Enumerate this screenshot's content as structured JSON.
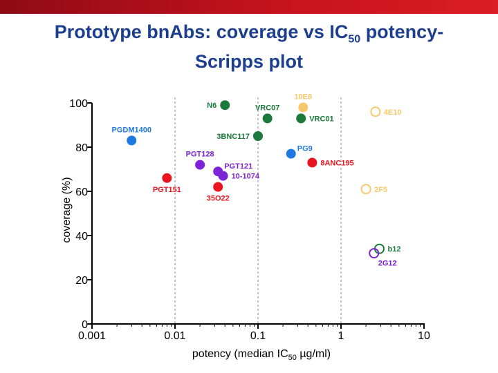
{
  "title": {
    "line1_a": "Prototype bnAbs: coverage vs IC",
    "line1_sub": "50",
    "line1_b": " potency-",
    "line2": "Scripps plot"
  },
  "colors": {
    "header_bar": "#c8141e",
    "title": "#1c3f8f",
    "green": "#1a7a3a",
    "blue": "#1f78e0",
    "purple": "#7e22d6",
    "red": "#e8141e",
    "yellow": "#f7c86a"
  },
  "chart_data": {
    "type": "scatter",
    "xscale": "log",
    "xlim": [
      0.001,
      10
    ],
    "ylim": [
      0,
      100
    ],
    "xticks": [
      {
        "value": 0.001,
        "label": "0.001"
      },
      {
        "value": 0.01,
        "label": "0.01"
      },
      {
        "value": 0.1,
        "label": "0.1"
      },
      {
        "value": 1,
        "label": "1"
      },
      {
        "value": 10,
        "label": "10"
      }
    ],
    "yticks": [
      {
        "value": 0,
        "label": "0"
      },
      {
        "value": 20,
        "label": "20"
      },
      {
        "value": 40,
        "label": "40"
      },
      {
        "value": 60,
        "label": "60"
      },
      {
        "value": 80,
        "label": "80"
      },
      {
        "value": 100,
        "label": "100"
      }
    ],
    "xlabel_a": "potency (median IC",
    "xlabel_sub": "50",
    "xlabel_b": " µg/ml)",
    "ylabel": "coverage (%)",
    "gridlines_x": [
      0.01,
      0.1,
      1
    ],
    "points": [
      {
        "name": "N6",
        "x": 0.04,
        "y": 99,
        "color": "#1a7a3a",
        "filled": true,
        "label_side": "left"
      },
      {
        "name": "VRC07",
        "x": 0.13,
        "y": 93,
        "color": "#1a7a3a",
        "filled": true,
        "label_side": "above"
      },
      {
        "name": "VRC01",
        "x": 0.33,
        "y": 93,
        "color": "#1a7a3a",
        "filled": true,
        "label_side": "right"
      },
      {
        "name": "3BNC117",
        "x": 0.1,
        "y": 85,
        "color": "#1a7a3a",
        "filled": true,
        "label_side": "left"
      },
      {
        "name": "PGDM1400",
        "x": 0.003,
        "y": 83,
        "color": "#1f78e0",
        "filled": true,
        "label_side": "above"
      },
      {
        "name": "PG9",
        "x": 0.25,
        "y": 77,
        "color": "#1f78e0",
        "filled": true,
        "label_side": "right-up"
      },
      {
        "name": "PGT128",
        "x": 0.02,
        "y": 72,
        "color": "#7e22d6",
        "filled": true,
        "label_side": "above"
      },
      {
        "name": "PGT121",
        "x": 0.033,
        "y": 69,
        "color": "#7e22d6",
        "filled": true,
        "label_side": "right-up"
      },
      {
        "name": "10-1074",
        "x": 0.038,
        "y": 67,
        "color": "#7e22d6",
        "filled": true,
        "label_side": "right"
      },
      {
        "name": "8ANC195",
        "x": 0.45,
        "y": 73,
        "color": "#e8141e",
        "filled": true,
        "label_side": "right"
      },
      {
        "name": "PGT151",
        "x": 0.008,
        "y": 66,
        "color": "#e8141e",
        "filled": true,
        "label_side": "below"
      },
      {
        "name": "35O22",
        "x": 0.033,
        "y": 62,
        "color": "#e8141e",
        "filled": true,
        "label_side": "below"
      },
      {
        "name": "10E8",
        "x": 0.35,
        "y": 98,
        "color": "#f7c86a",
        "filled": true,
        "label_side": "above"
      },
      {
        "name": "4E10",
        "x": 2.6,
        "y": 96,
        "color": "#f7c86a",
        "filled": false,
        "label_side": "right"
      },
      {
        "name": "2F5",
        "x": 2.0,
        "y": 61,
        "color": "#f7c86a",
        "filled": false,
        "label_side": "right"
      },
      {
        "name": "b12",
        "x": 2.9,
        "y": 34,
        "color": "#1a7a3a",
        "filled": false,
        "label_side": "right"
      },
      {
        "name": "2G12",
        "x": 2.5,
        "y": 32,
        "color": "#7e22d6",
        "filled": false,
        "label_side": "below-right"
      }
    ]
  }
}
